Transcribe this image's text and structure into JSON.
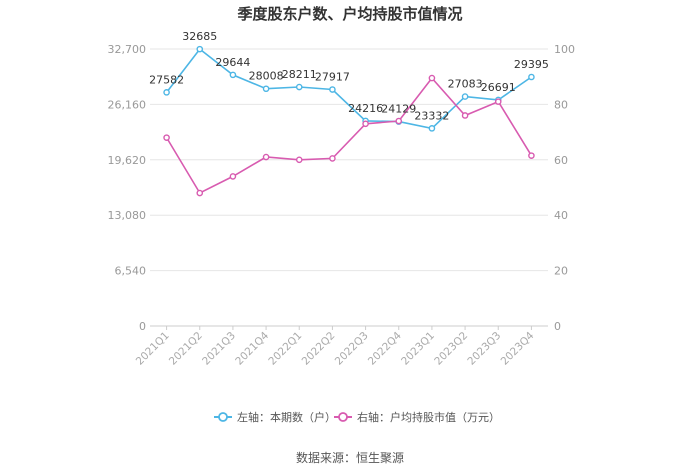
{
  "chart_data": {
    "type": "line",
    "title": "季度股东户数、户均持股市值情况",
    "categories": [
      "2021Q1",
      "2021Q2",
      "2021Q3",
      "2021Q4",
      "2022Q1",
      "2022Q2",
      "2022Q3",
      "2022Q4",
      "2023Q1",
      "2023Q2",
      "2023Q3",
      "2023Q4"
    ],
    "left_axis": {
      "ylim": [
        0,
        32700
      ],
      "ticks": [
        "0",
        "6,540",
        "13,080",
        "19,620",
        "26,160",
        "32,700"
      ]
    },
    "right_axis": {
      "ylim": [
        0,
        100
      ],
      "ticks": [
        "0",
        "20",
        "40",
        "60",
        "80",
        "100"
      ]
    },
    "grid": true,
    "legend_position": "bottom",
    "series": [
      {
        "name": "左轴：本期数（户）",
        "axis": "left",
        "color": "#4db6e5",
        "values": [
          27582,
          32685,
          29644,
          28008,
          28211,
          27917,
          24216,
          24129,
          23332,
          27083,
          26691,
          29395
        ],
        "labels": [
          "27582",
          "32685",
          "29644",
          "28008",
          "28211",
          "27917",
          "24216",
          "24129",
          "23332",
          "27083",
          "26691",
          "29395"
        ]
      },
      {
        "name": "右轴：户均持股市值（万元）",
        "axis": "right",
        "color": "#d85bb0",
        "values": [
          68.0,
          48.0,
          54.0,
          61.0,
          60.0,
          60.5,
          73.0,
          74.0,
          89.5,
          76.0,
          81.0,
          61.5
        ]
      }
    ]
  },
  "source": "数据来源：恒生聚源"
}
